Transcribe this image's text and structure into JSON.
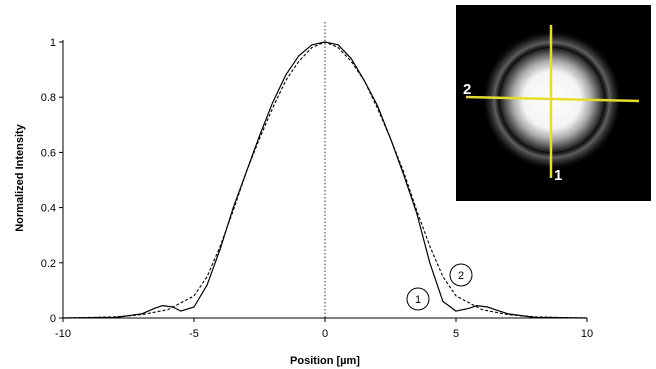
{
  "chart_data": {
    "type": "line",
    "xlabel": "Position [µm]",
    "ylabel": "Normalized Intensity",
    "xlim": [
      -10,
      10
    ],
    "ylim": [
      0,
      1
    ],
    "xticks": [
      "-10",
      "-5",
      "0",
      "5",
      "10"
    ],
    "yticks": [
      "0",
      "0.2",
      "0.4",
      "0.6",
      "0.8",
      "1"
    ],
    "grid": false,
    "center_line_x": 0,
    "callouts": [
      {
        "label": "1",
        "x": 3.6,
        "y": 0.075
      },
      {
        "label": "2",
        "x": 5.1,
        "y": 0.165
      }
    ],
    "series": [
      {
        "label": "1",
        "style": "solid",
        "x": [
          -10,
          -8,
          -7,
          -6.5,
          -6.2,
          -5.8,
          -5.5,
          -5,
          -4.5,
          -4,
          -3.5,
          -3,
          -2.5,
          -2,
          -1.5,
          -1,
          -0.5,
          0,
          0.5,
          1,
          1.5,
          2,
          2.5,
          3,
          3.5,
          4,
          4.5,
          5,
          5.5,
          5.8,
          6.2,
          6.5,
          7,
          8,
          10
        ],
        "y": [
          0,
          0.002,
          0.015,
          0.035,
          0.045,
          0.04,
          0.025,
          0.04,
          0.12,
          0.25,
          0.4,
          0.53,
          0.66,
          0.78,
          0.88,
          0.95,
          0.99,
          1.0,
          0.99,
          0.94,
          0.86,
          0.77,
          0.65,
          0.52,
          0.38,
          0.2,
          0.06,
          0.025,
          0.035,
          0.045,
          0.04,
          0.03,
          0.015,
          0.002,
          0
        ]
      },
      {
        "label": "2",
        "style": "dashed",
        "x": [
          -10,
          -8,
          -7,
          -6,
          -5,
          -4.5,
          -4,
          -3.5,
          -3,
          -2.5,
          -2,
          -1.5,
          -1,
          -0.5,
          0,
          0.5,
          1,
          1.5,
          2,
          2.5,
          3,
          3.5,
          4,
          4.5,
          5,
          6,
          7,
          8,
          10
        ],
        "y": [
          0,
          0.004,
          0.012,
          0.03,
          0.08,
          0.15,
          0.26,
          0.39,
          0.53,
          0.65,
          0.76,
          0.86,
          0.93,
          0.98,
          1.0,
          0.98,
          0.93,
          0.86,
          0.76,
          0.65,
          0.53,
          0.39,
          0.26,
          0.15,
          0.08,
          0.03,
          0.012,
          0.004,
          0
        ]
      }
    ]
  },
  "inset": {
    "label_1": "1",
    "label_2": "2",
    "line_color": "#e6dc2e"
  }
}
